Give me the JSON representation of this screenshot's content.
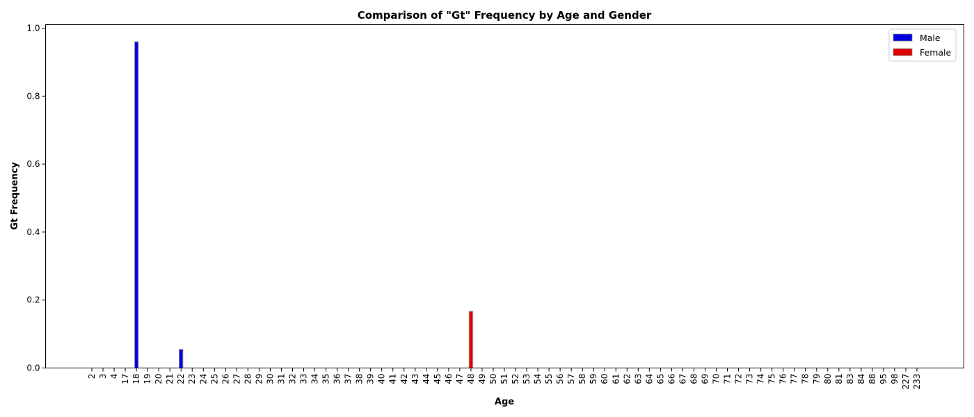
{
  "chart_data": {
    "type": "bar",
    "title": "Comparison of \"Gt\" Frequency by Age and Gender",
    "xlabel": "Age",
    "ylabel": "Gt Frequency",
    "ylim": [
      0,
      1.0
    ],
    "yticks": [
      "0.0",
      "0.2",
      "0.4",
      "0.6",
      "0.8",
      "1.0"
    ],
    "grid": false,
    "legend_position": "top-right",
    "categories": [
      "2",
      "3",
      "4",
      "17",
      "18",
      "19",
      "20",
      "21",
      "22",
      "23",
      "24",
      "25",
      "26",
      "27",
      "28",
      "29",
      "30",
      "31",
      "32",
      "33",
      "34",
      "35",
      "36",
      "37",
      "38",
      "39",
      "40",
      "41",
      "42",
      "43",
      "44",
      "45",
      "46",
      "47",
      "48",
      "49",
      "50",
      "51",
      "52",
      "53",
      "54",
      "55",
      "56",
      "57",
      "58",
      "59",
      "60",
      "61",
      "62",
      "63",
      "64",
      "65",
      "66",
      "67",
      "68",
      "69",
      "70",
      "71",
      "72",
      "73",
      "74",
      "75",
      "76",
      "77",
      "78",
      "79",
      "80",
      "81",
      "83",
      "84",
      "88",
      "95",
      "98",
      "227",
      "233"
    ],
    "series": [
      {
        "name": "Male",
        "color": "#0000dd",
        "values": {
          "18": 0.96,
          "22": 0.055
        }
      },
      {
        "name": "Female",
        "color": "#dd0000",
        "values": {
          "48": 0.167
        }
      }
    ]
  }
}
